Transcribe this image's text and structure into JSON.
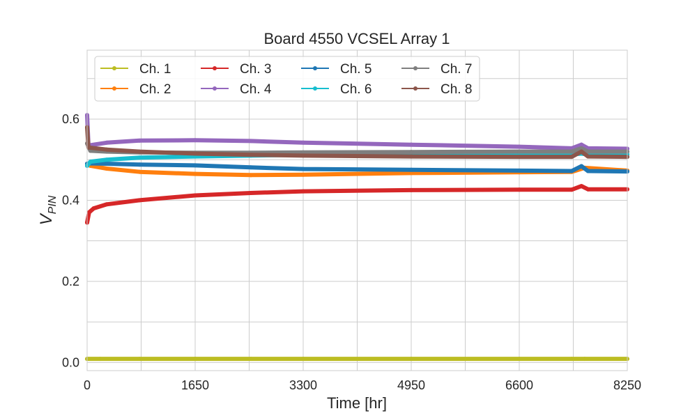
{
  "chart_data": {
    "type": "line",
    "title": "Board 4550 VCSEL Array 1",
    "xlabel": "Time [hr]",
    "ylabel": "V",
    "ylabel_sub": "PIN",
    "xlim": [
      0,
      8250
    ],
    "ylim": [
      -0.02,
      0.77
    ],
    "xticks": [
      0,
      1650,
      3300,
      4950,
      6600,
      8250
    ],
    "yticks": [
      0.0,
      0.2,
      0.4,
      0.6
    ],
    "xtick_labels": [
      "0",
      "1650",
      "3300",
      "4950",
      "6600",
      "8250"
    ],
    "ytick_labels": [
      "0.0",
      "0.2",
      "0.4",
      "0.6"
    ],
    "grid": true,
    "legend_position": "top-left",
    "legend_columns": 4,
    "series": [
      {
        "name": "Ch. 1",
        "color": "#bcbd22",
        "x": [
          0,
          200,
          800,
          1650,
          2500,
          3300,
          4950,
          6600,
          7400,
          7600,
          8250
        ],
        "y": [
          0.009,
          0.009,
          0.009,
          0.009,
          0.009,
          0.009,
          0.009,
          0.009,
          0.009,
          0.009,
          0.009
        ]
      },
      {
        "name": "Ch. 2",
        "color": "#ff7f0e",
        "x": [
          0,
          50,
          300,
          800,
          1650,
          2500,
          3300,
          4950,
          6600,
          7400,
          7600,
          8250
        ],
        "y": [
          0.49,
          0.485,
          0.478,
          0.47,
          0.465,
          0.462,
          0.463,
          0.467,
          0.469,
          0.47,
          0.48,
          0.473
        ]
      },
      {
        "name": "Ch. 3",
        "color": "#d62728",
        "x": [
          0,
          30,
          100,
          300,
          800,
          1650,
          2500,
          3300,
          4950,
          6600,
          7400,
          7550,
          7650,
          8250
        ],
        "y": [
          0.345,
          0.37,
          0.38,
          0.39,
          0.4,
          0.412,
          0.418,
          0.422,
          0.425,
          0.426,
          0.426,
          0.435,
          0.427,
          0.427
        ]
      },
      {
        "name": "Ch. 4",
        "color": "#9467bd",
        "x": [
          0,
          20,
          300,
          800,
          1650,
          2500,
          3300,
          4950,
          6600,
          7400,
          7550,
          7650,
          8250
        ],
        "y": [
          0.61,
          0.535,
          0.542,
          0.547,
          0.548,
          0.546,
          0.542,
          0.537,
          0.532,
          0.528,
          0.537,
          0.528,
          0.527
        ]
      },
      {
        "name": "Ch. 5",
        "color": "#1f77b4",
        "x": [
          0,
          50,
          300,
          800,
          1650,
          2500,
          3300,
          4950,
          6600,
          7400,
          7550,
          7650,
          8250
        ],
        "y": [
          0.49,
          0.491,
          0.49,
          0.488,
          0.486,
          0.481,
          0.477,
          0.475,
          0.473,
          0.472,
          0.484,
          0.472,
          0.471
        ]
      },
      {
        "name": "Ch. 6",
        "color": "#17becf",
        "x": [
          0,
          50,
          300,
          800,
          1650,
          2500,
          3300,
          4950,
          6600,
          7400,
          7550,
          7650,
          8250
        ],
        "y": [
          0.485,
          0.495,
          0.5,
          0.505,
          0.508,
          0.51,
          0.512,
          0.513,
          0.513,
          0.513,
          0.515,
          0.513,
          0.513
        ]
      },
      {
        "name": "Ch. 7",
        "color": "#7f7f7f",
        "x": [
          0,
          50,
          300,
          800,
          1650,
          2500,
          3300,
          4950,
          6600,
          7400,
          7550,
          7650,
          8250
        ],
        "y": [
          0.54,
          0.522,
          0.52,
          0.518,
          0.517,
          0.517,
          0.518,
          0.519,
          0.52,
          0.52,
          0.528,
          0.52,
          0.52
        ]
      },
      {
        "name": "Ch. 8",
        "color": "#8c564b",
        "x": [
          0,
          20,
          300,
          800,
          1650,
          2500,
          3300,
          4950,
          6600,
          7400,
          7550,
          7650,
          8250
        ],
        "y": [
          0.58,
          0.53,
          0.525,
          0.52,
          0.515,
          0.512,
          0.51,
          0.508,
          0.507,
          0.507,
          0.52,
          0.508,
          0.507
        ]
      }
    ]
  }
}
